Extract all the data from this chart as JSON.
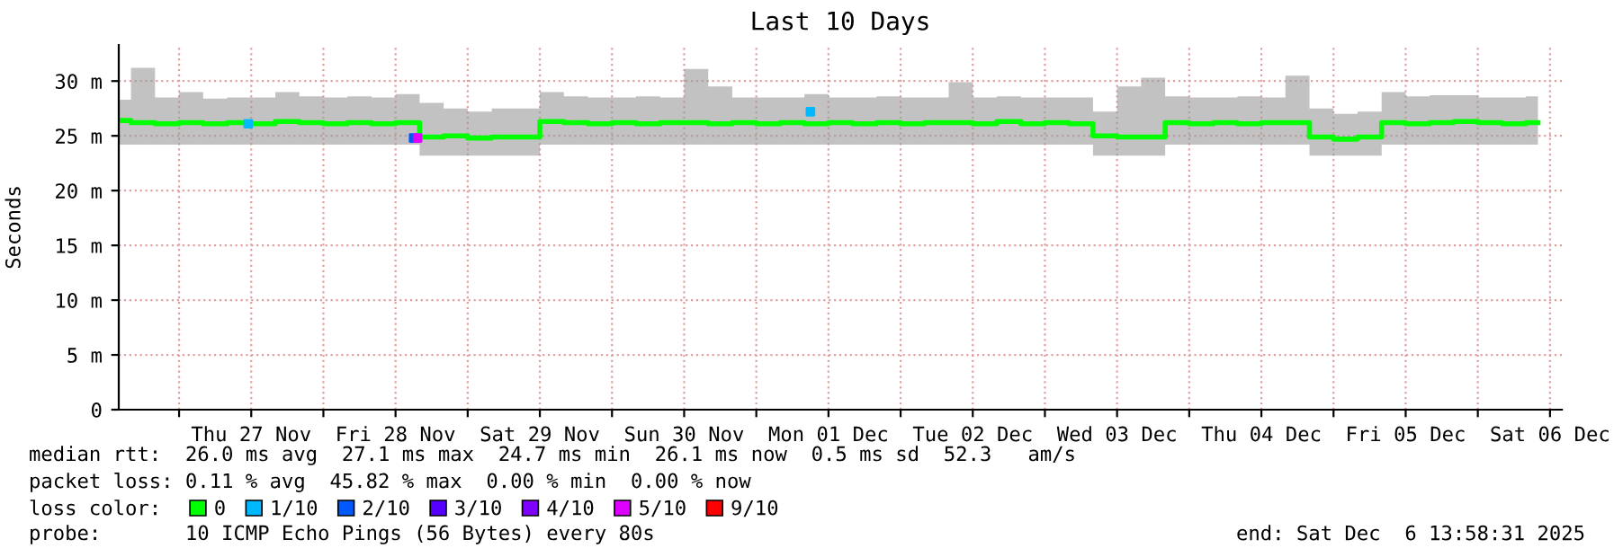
{
  "chart_data": {
    "type": "line",
    "title": "Last 10 Days",
    "ylabel": "Seconds",
    "xlim": [
      "2025-11-26T13:58",
      "2025-12-06T13:58"
    ],
    "xticks": [
      {
        "value": "2025-11-27T00:00",
        "label": null
      },
      {
        "value": "2025-11-27T12:00",
        "label": "Thu 27 Nov"
      },
      {
        "value": "2025-11-28T00:00",
        "label": null
      },
      {
        "value": "2025-11-28T12:00",
        "label": "Fri 28 Nov"
      },
      {
        "value": "2025-11-29T00:00",
        "label": null
      },
      {
        "value": "2025-11-29T12:00",
        "label": "Sat 29 Nov"
      },
      {
        "value": "2025-11-30T00:00",
        "label": null
      },
      {
        "value": "2025-11-30T12:00",
        "label": "Sun 30 Nov"
      },
      {
        "value": "2025-12-01T00:00",
        "label": null
      },
      {
        "value": "2025-12-01T12:00",
        "label": "Mon 01 Dec"
      },
      {
        "value": "2025-12-02T00:00",
        "label": null
      },
      {
        "value": "2025-12-02T12:00",
        "label": "Tue 02 Dec"
      },
      {
        "value": "2025-12-03T00:00",
        "label": null
      },
      {
        "value": "2025-12-03T12:00",
        "label": "Wed 03 Dec"
      },
      {
        "value": "2025-12-04T00:00",
        "label": null
      },
      {
        "value": "2025-12-04T12:00",
        "label": "Thu 04 Dec"
      },
      {
        "value": "2025-12-05T00:00",
        "label": null
      },
      {
        "value": "2025-12-05T12:00",
        "label": "Fri 05 Dec"
      },
      {
        "value": "2025-12-06T00:00",
        "label": null
      },
      {
        "value": "2025-12-06T12:00",
        "label": "Sat 06 Dec"
      }
    ],
    "ylim": [
      0,
      33.3
    ],
    "yticks": [
      0,
      {
        "value": 5,
        "label": "5 m"
      },
      {
        "value": 10,
        "label": "10 m"
      },
      {
        "value": 15,
        "label": "15 m"
      },
      {
        "value": 20,
        "label": "20 m"
      },
      {
        "value": 25,
        "label": "25 m"
      },
      {
        "value": 30,
        "label": "30 m"
      }
    ],
    "grid": true,
    "legend": "bottom",
    "legend_title": "loss color:",
    "series": [
      {
        "name": "0",
        "color": "#00ff00",
        "x": [
          "2025-11-26T14:00",
          "2025-11-26T18:00",
          "2025-11-26T22:00",
          "2025-11-27T02:00",
          "2025-11-27T06:00",
          "2025-11-27T10:00",
          "2025-11-27T14:00",
          "2025-11-27T18:00",
          "2025-11-27T22:00",
          "2025-11-28T02:00",
          "2025-11-28T06:00",
          "2025-11-28T10:00",
          "2025-11-28T14:00",
          "2025-11-28T18:00",
          "2025-11-28T22:00",
          "2025-11-29T02:00",
          "2025-11-29T06:00",
          "2025-11-29T10:00",
          "2025-11-29T14:00",
          "2025-11-29T18:00",
          "2025-11-29T22:00",
          "2025-11-30T02:00",
          "2025-11-30T06:00",
          "2025-11-30T10:00",
          "2025-11-30T14:00",
          "2025-11-30T18:00",
          "2025-11-30T22:00",
          "2025-12-01T02:00",
          "2025-12-01T06:00",
          "2025-12-01T10:00",
          "2025-12-01T14:00",
          "2025-12-01T18:00",
          "2025-12-01T22:00",
          "2025-12-02T02:00",
          "2025-12-02T06:00",
          "2025-12-02T10:00",
          "2025-12-02T14:00",
          "2025-12-02T18:00",
          "2025-12-02T22:00",
          "2025-12-03T02:00",
          "2025-12-03T06:00",
          "2025-12-03T10:00",
          "2025-12-03T14:00",
          "2025-12-03T18:00",
          "2025-12-03T22:00",
          "2025-12-04T02:00",
          "2025-12-04T06:00",
          "2025-12-04T10:00",
          "2025-12-04T14:00",
          "2025-12-04T18:00",
          "2025-12-04T22:00",
          "2025-12-05T02:00",
          "2025-12-05T06:00",
          "2025-12-05T10:00",
          "2025-12-05T14:00",
          "2025-12-05T18:00",
          "2025-12-05T22:00",
          "2025-12-06T02:00",
          "2025-12-06T06:00",
          "2025-12-06T10:00"
        ],
        "values": [
          26.4,
          26.2,
          26.1,
          26.2,
          26.1,
          26.2,
          26.1,
          26.3,
          26.2,
          26.1,
          26.2,
          26.1,
          26.2,
          24.9,
          25.0,
          24.8,
          24.9,
          24.9,
          26.3,
          26.2,
          26.1,
          26.2,
          26.1,
          26.2,
          26.2,
          26.1,
          26.2,
          26.1,
          26.2,
          26.1,
          26.2,
          26.1,
          26.2,
          26.1,
          26.2,
          26.2,
          26.1,
          26.3,
          26.1,
          26.2,
          26.1,
          25.0,
          24.9,
          24.9,
          26.2,
          26.1,
          26.2,
          26.1,
          26.2,
          26.2,
          24.9,
          24.7,
          24.9,
          26.2,
          26.1,
          26.2,
          26.3,
          26.2,
          26.1,
          26.2
        ],
        "lower": [
          24.2,
          24.2,
          24.2,
          24.2,
          24.2,
          24.2,
          24.2,
          24.2,
          24.2,
          24.2,
          24.2,
          24.2,
          24.2,
          23.2,
          23.2,
          23.2,
          23.2,
          23.2,
          24.2,
          24.2,
          24.2,
          24.2,
          24.2,
          24.2,
          24.2,
          24.2,
          24.2,
          24.2,
          24.2,
          24.2,
          24.2,
          24.2,
          24.2,
          24.2,
          24.2,
          24.2,
          24.2,
          24.2,
          24.2,
          24.2,
          24.2,
          23.2,
          23.2,
          23.2,
          24.2,
          24.2,
          24.2,
          24.2,
          24.2,
          24.2,
          23.2,
          23.2,
          23.2,
          24.2,
          24.2,
          24.2,
          24.2,
          24.2,
          24.2,
          24.2
        ],
        "upper": [
          28.3,
          31.2,
          28.5,
          29.0,
          28.4,
          28.5,
          28.5,
          29.0,
          28.6,
          28.5,
          28.6,
          28.5,
          28.8,
          28.0,
          27.5,
          27.2,
          27.5,
          27.5,
          29.0,
          28.6,
          28.5,
          28.5,
          28.6,
          28.5,
          31.1,
          29.5,
          28.5,
          28.5,
          28.5,
          28.8,
          28.5,
          28.5,
          28.6,
          28.5,
          28.5,
          29.9,
          28.5,
          28.6,
          28.5,
          28.5,
          28.5,
          27.2,
          29.5,
          30.3,
          28.6,
          28.5,
          28.5,
          28.6,
          28.5,
          30.5,
          27.5,
          27.0,
          27.2,
          29.0,
          28.6,
          28.7,
          28.7,
          28.5,
          28.5,
          28.6
        ]
      },
      {
        "name": "1/10",
        "color": "#00b8ff",
        "type": "scatter",
        "x": [
          "2025-11-27T11:30",
          "2025-12-01T09:00"
        ],
        "values": [
          26.1,
          27.2
        ]
      },
      {
        "name": "2/10",
        "color": "#0059ff",
        "type": "scatter",
        "x": [
          "2025-11-28T15:00"
        ],
        "values": [
          24.8
        ]
      },
      {
        "name": "3/10",
        "color": "#5500ff",
        "type": "scatter"
      },
      {
        "name": "4/10",
        "color": "#7e00ff",
        "type": "scatter"
      },
      {
        "name": "5/10",
        "color": "#dd00ff",
        "type": "scatter",
        "x": [
          "2025-11-28T15:40"
        ],
        "values": [
          24.8
        ]
      },
      {
        "name": "9/10",
        "color": "#ff0000",
        "type": "scatter"
      }
    ],
    "annotations": [
      "median rtt:  26.0 ms avg  27.1 ms max  24.7 ms min  26.1 ms now  0.5 ms sd  52.3   am/s",
      "packet loss: 0.11 % avg  45.82 % max  0.00 % min  0.00 % now",
      "probe:       10 ICMP Echo Pings (56 Bytes) every 80s",
      "end: Sat Dec  6 13:58:31 2025"
    ]
  }
}
